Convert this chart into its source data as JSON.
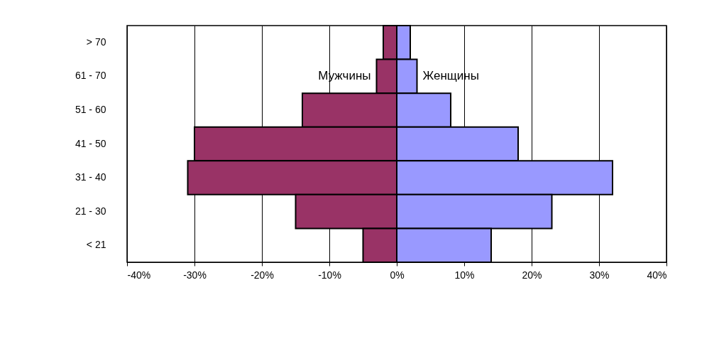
{
  "chart_data": {
    "type": "bar",
    "orientation": "horizontal",
    "categories": [
      "> 70",
      "61 - 70",
      "51 - 60",
      "41 - 50",
      "31 - 40",
      "21 - 30",
      "< 21"
    ],
    "series": [
      {
        "name": "Мужчины",
        "color": "#993366",
        "values": [
          -2,
          -3,
          -14,
          -30,
          -31,
          -15,
          -5
        ]
      },
      {
        "name": "Женщины",
        "color": "#9999ff",
        "values": [
          2,
          3,
          8,
          18,
          32,
          23,
          14
        ]
      }
    ],
    "xlim": [
      -40,
      40
    ],
    "xticks": [
      {
        "value": -40,
        "label": "-40%"
      },
      {
        "value": -30,
        "label": "-30%"
      },
      {
        "value": -20,
        "label": "-20%"
      },
      {
        "value": -10,
        "label": "-10%"
      },
      {
        "value": 0,
        "label": "0%"
      },
      {
        "value": 10,
        "label": "10%"
      },
      {
        "value": 20,
        "label": "20%"
      },
      {
        "value": 30,
        "label": "30%"
      },
      {
        "value": 40,
        "label": "40%"
      }
    ],
    "stacked": true,
    "grid": "x",
    "legend": false
  }
}
